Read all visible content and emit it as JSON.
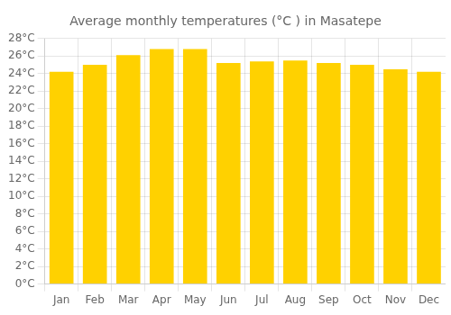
{
  "chart_data": {
    "type": "bar",
    "title": "Average monthly temperatures (°C ) in Masatepe",
    "categories": [
      "Jan",
      "Feb",
      "Mar",
      "Apr",
      "May",
      "Jun",
      "Jul",
      "Aug",
      "Sep",
      "Oct",
      "Nov",
      "Dec"
    ],
    "values": [
      24.2,
      25.0,
      26.1,
      26.8,
      26.8,
      25.2,
      25.4,
      25.5,
      25.2,
      25.0,
      24.5,
      24.2
    ],
    "color": "#FFD100",
    "ylim": [
      0,
      28
    ],
    "yticks": [
      {
        "value": 0,
        "label": "0°C"
      },
      {
        "value": 2,
        "label": "2°C"
      },
      {
        "value": 4,
        "label": "4°C"
      },
      {
        "value": 6,
        "label": "6°C"
      },
      {
        "value": 8,
        "label": "8°C"
      },
      {
        "value": 10,
        "label": "10°C"
      },
      {
        "value": 12,
        "label": "12°C"
      },
      {
        "value": 14,
        "label": "14°C"
      },
      {
        "value": 16,
        "label": "16°C"
      },
      {
        "value": 18,
        "label": "18°C"
      },
      {
        "value": 20,
        "label": "20°C"
      },
      {
        "value": 22,
        "label": "22°C"
      },
      {
        "value": 24,
        "label": "24°C"
      },
      {
        "value": 26,
        "label": "26°C"
      },
      {
        "value": 28,
        "label": "28°C"
      }
    ],
    "grid": true
  }
}
